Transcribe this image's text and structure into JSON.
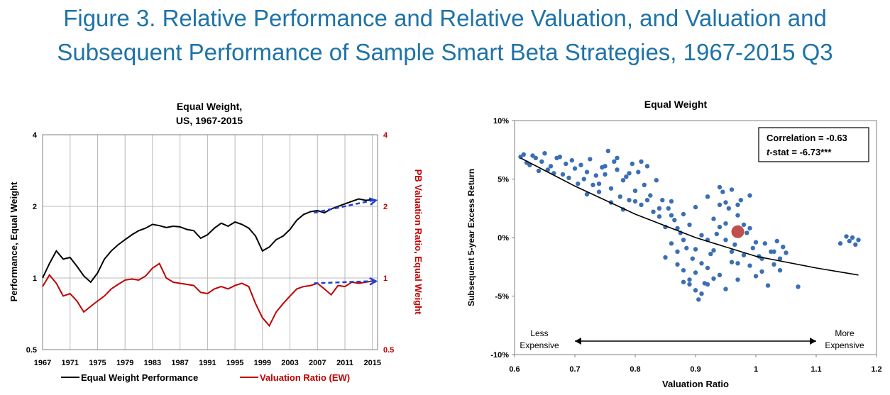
{
  "figure": {
    "title_line1": "Figure 3. Relative Performance and Relative Valuation, and Valuation and",
    "title_line2": "Subsequent Performance of Sample Smart Beta Strategies, 1967-2015 Q3"
  },
  "colors": {
    "title": "#1e73a8",
    "performance": "#000000",
    "valuation": "#c00000",
    "trend": "#1f3fd6",
    "scatter": "#3a6fb4",
    "current": "#c0504d"
  },
  "chart_data": [
    {
      "type": "line",
      "title_line1": "Equal Weight,",
      "title_line2": "US, 1967-2015",
      "ylabel_left": "Performance, Equal Weight",
      "ylabel_right": "PB Valuation Ratio, Equal Weight",
      "yscale": "log",
      "ylim": [
        0.5,
        4
      ],
      "yticks": [
        "0.5",
        "1",
        "2",
        "4"
      ],
      "xlim": [
        1967,
        2015.75
      ],
      "xticks": [
        "1967",
        "1971",
        "1975",
        "1979",
        "1983",
        "1987",
        "1991",
        "1995",
        "1999",
        "2003",
        "2007",
        "2011",
        "2015"
      ],
      "grid": true,
      "legend": [
        "Equal Weight Performance",
        "Valuation Ratio (EW)"
      ],
      "series": [
        {
          "name": "Equal Weight Performance",
          "x": [
            1967,
            1968,
            1969,
            1970,
            1971,
            1972,
            1973,
            1974,
            1975,
            1976,
            1977,
            1978,
            1979,
            1980,
            1981,
            1982,
            1983,
            1984,
            1985,
            1986,
            1987,
            1988,
            1989,
            1990,
            1991,
            1992,
            1993,
            1994,
            1995,
            1996,
            1997,
            1998,
            1999,
            2000,
            2001,
            2002,
            2003,
            2004,
            2005,
            2006,
            2007,
            2008,
            2009,
            2010,
            2011,
            2012,
            2013,
            2014,
            2015,
            2015.5
          ],
          "y": [
            1.0,
            1.15,
            1.3,
            1.2,
            1.22,
            1.12,
            1.02,
            0.96,
            1.05,
            1.2,
            1.3,
            1.38,
            1.45,
            1.52,
            1.58,
            1.62,
            1.68,
            1.66,
            1.63,
            1.65,
            1.64,
            1.6,
            1.58,
            1.47,
            1.52,
            1.62,
            1.7,
            1.65,
            1.72,
            1.68,
            1.62,
            1.5,
            1.3,
            1.35,
            1.45,
            1.5,
            1.6,
            1.75,
            1.85,
            1.9,
            1.92,
            1.88,
            1.95,
            2.0,
            2.05,
            2.1,
            2.15,
            2.12,
            2.13,
            2.12
          ]
        },
        {
          "name": "Valuation Ratio (EW)",
          "x": [
            1967,
            1968,
            1969,
            1970,
            1971,
            1972,
            1973,
            1974,
            1975,
            1976,
            1977,
            1978,
            1979,
            1980,
            1981,
            1982,
            1983,
            1984,
            1985,
            1986,
            1987,
            1988,
            1989,
            1990,
            1991,
            1992,
            1993,
            1994,
            1995,
            1996,
            1997,
            1998,
            1999,
            2000,
            2001,
            2002,
            2003,
            2004,
            2005,
            2006,
            2007,
            2008,
            2009,
            2010,
            2011,
            2012,
            2013,
            2014,
            2015,
            2015.5
          ],
          "y": [
            0.92,
            1.03,
            0.95,
            0.84,
            0.86,
            0.8,
            0.72,
            0.76,
            0.8,
            0.84,
            0.9,
            0.94,
            0.98,
            0.99,
            0.98,
            1.02,
            1.1,
            1.15,
            1.0,
            0.96,
            0.95,
            0.94,
            0.93,
            0.87,
            0.86,
            0.9,
            0.92,
            0.9,
            0.93,
            0.95,
            0.92,
            0.78,
            0.68,
            0.63,
            0.72,
            0.78,
            0.84,
            0.9,
            0.92,
            0.93,
            0.95,
            0.9,
            0.85,
            0.93,
            0.92,
            0.96,
            0.95,
            0.96,
            0.97,
            0.96
          ]
        }
      ],
      "trend_arrows": [
        {
          "x": [
            2006.5,
            2015.5
          ],
          "y": [
            1.88,
            2.12
          ]
        },
        {
          "x": [
            2006.5,
            2015.5
          ],
          "y": [
            0.95,
            0.97
          ]
        }
      ]
    },
    {
      "type": "scatter",
      "title": "Equal Weight",
      "xlabel": "Valuation Ratio",
      "ylabel": "Subsequent 5-year Excess Return",
      "xlim": [
        0.6,
        1.2
      ],
      "ylim": [
        -10,
        10
      ],
      "xticks": [
        "0.6",
        "0.7",
        "0.8",
        "0.9",
        "1",
        "1.1",
        "1.2"
      ],
      "yticks": [
        "-10%",
        "-5%",
        "0%",
        "5%",
        "10%"
      ],
      "stats_line1": "Correlation =  -0.63",
      "stats_line2_italic": "t",
      "stats_line2_rest": "-stat = -6.73***",
      "left_label_line1": "Less",
      "left_label_line2": "Expensive",
      "right_label_line1": "More",
      "right_label_line2": "Expensive",
      "fit_line": {
        "x": [
          0.61,
          0.7,
          0.8,
          0.9,
          1.0,
          1.1,
          1.17
        ],
        "y": [
          6.8,
          4.4,
          2.0,
          0.0,
          -1.6,
          -2.6,
          -3.2
        ]
      },
      "current_point": {
        "x": 0.97,
        "y": 0.5
      },
      "points": [
        [
          0.61,
          6.9
        ],
        [
          0.615,
          7.1
        ],
        [
          0.62,
          6.4
        ],
        [
          0.625,
          6.2
        ],
        [
          0.63,
          7.0
        ],
        [
          0.635,
          6.8
        ],
        [
          0.64,
          5.7
        ],
        [
          0.645,
          6.5
        ],
        [
          0.65,
          7.2
        ],
        [
          0.655,
          5.8
        ],
        [
          0.66,
          6.1
        ],
        [
          0.665,
          5.5
        ],
        [
          0.67,
          6.8
        ],
        [
          0.675,
          6.9
        ],
        [
          0.68,
          5.4
        ],
        [
          0.685,
          6.3
        ],
        [
          0.69,
          5.1
        ],
        [
          0.695,
          6.6
        ],
        [
          0.7,
          5.9
        ],
        [
          0.705,
          4.6
        ],
        [
          0.71,
          6.2
        ],
        [
          0.715,
          5.0
        ],
        [
          0.72,
          5.6
        ],
        [
          0.725,
          6.7
        ],
        [
          0.73,
          4.5
        ],
        [
          0.735,
          5.3
        ],
        [
          0.74,
          3.9
        ],
        [
          0.745,
          6.0
        ],
        [
          0.75,
          5.4
        ],
        [
          0.755,
          7.4
        ],
        [
          0.76,
          4.2
        ],
        [
          0.765,
          6.5
        ],
        [
          0.77,
          5.8
        ],
        [
          0.775,
          3.5
        ],
        [
          0.78,
          4.9
        ],
        [
          0.785,
          5.2
        ],
        [
          0.79,
          3.2
        ],
        [
          0.795,
          6.3
        ],
        [
          0.8,
          4.0
        ],
        [
          0.805,
          5.6
        ],
        [
          0.81,
          2.8
        ],
        [
          0.815,
          4.5
        ],
        [
          0.82,
          6.1
        ],
        [
          0.825,
          3.6
        ],
        [
          0.83,
          2.2
        ],
        [
          0.835,
          4.9
        ],
        [
          0.84,
          1.8
        ],
        [
          0.845,
          3.2
        ],
        [
          0.85,
          0.9
        ],
        [
          0.855,
          2.5
        ],
        [
          0.86,
          -0.5
        ],
        [
          0.865,
          1.5
        ],
        [
          0.87,
          -1.2
        ],
        [
          0.875,
          0.4
        ],
        [
          0.88,
          -2.8
        ],
        [
          0.885,
          -0.9
        ],
        [
          0.89,
          -3.6
        ],
        [
          0.895,
          -1.8
        ],
        [
          0.9,
          -4.5
        ],
        [
          0.905,
          -5.3
        ],
        [
          0.91,
          -2.2
        ],
        [
          0.915,
          -3.9
        ],
        [
          0.92,
          -0.2
        ],
        [
          0.925,
          -1.4
        ],
        [
          0.93,
          1.6
        ],
        [
          0.935,
          0.3
        ],
        [
          0.94,
          2.8
        ],
        [
          0.945,
          3.9
        ],
        [
          0.95,
          1.2
        ],
        [
          0.955,
          2.5
        ],
        [
          0.96,
          4.1
        ],
        [
          0.965,
          -0.6
        ],
        [
          0.97,
          1.9
        ],
        [
          0.975,
          3.2
        ],
        [
          0.98,
          -1.5
        ],
        [
          0.985,
          0.4
        ],
        [
          0.99,
          -2.4
        ],
        [
          0.995,
          -0.9
        ],
        [
          1.0,
          -3.3
        ],
        [
          1.005,
          -1.6
        ],
        [
          1.01,
          -2.9
        ],
        [
          1.015,
          -0.5
        ],
        [
          1.02,
          -4.1
        ],
        [
          1.025,
          -1.2
        ],
        [
          1.03,
          -2.3
        ],
        [
          1.035,
          -0.3
        ],
        [
          1.04,
          -1.8
        ],
        [
          1.045,
          -0.8
        ],
        [
          1.05,
          -1.3
        ],
        [
          1.07,
          -4.2
        ],
        [
          1.14,
          -0.5
        ],
        [
          1.15,
          0.1
        ],
        [
          1.155,
          -0.3
        ],
        [
          1.16,
          0.0
        ],
        [
          1.165,
          -0.6
        ],
        [
          1.17,
          -0.2
        ],
        [
          0.86,
          1.9
        ],
        [
          0.87,
          0.8
        ],
        [
          0.88,
          -0.2
        ],
        [
          0.89,
          1.1
        ],
        [
          0.9,
          -1.0
        ],
        [
          0.91,
          0.2
        ],
        [
          0.92,
          -2.6
        ],
        [
          0.93,
          -1.1
        ],
        [
          0.94,
          0.9
        ],
        [
          0.95,
          -0.2
        ],
        [
          0.96,
          -1.2
        ],
        [
          0.97,
          -2.2
        ],
        [
          0.98,
          1.1
        ],
        [
          0.99,
          0.8
        ],
        [
          1.0,
          -0.4
        ],
        [
          0.88,
          -3.8
        ],
        [
          0.9,
          -3.0
        ],
        [
          0.92,
          -4.0
        ],
        [
          0.94,
          -3.2
        ],
        [
          0.96,
          -2.1
        ],
        [
          0.82,
          3.2
        ],
        [
          0.84,
          2.5
        ],
        [
          0.86,
          3.1
        ],
        [
          0.88,
          2.0
        ],
        [
          0.9,
          2.6
        ],
        [
          0.92,
          3.5
        ],
        [
          0.94,
          4.3
        ],
        [
          0.95,
          3.0
        ],
        [
          0.97,
          2.8
        ],
        [
          0.99,
          3.6
        ],
        [
          0.75,
          6.1
        ],
        [
          0.77,
          6.8
        ],
        [
          0.79,
          5.5
        ],
        [
          0.81,
          6.5
        ],
        [
          0.72,
          3.7
        ],
        [
          0.74,
          4.6
        ],
        [
          0.76,
          3.0
        ],
        [
          0.78,
          2.4
        ],
        [
          0.8,
          3.1
        ],
        [
          0.85,
          -1.7
        ],
        [
          0.87,
          -2.3
        ],
        [
          0.89,
          -4.0
        ],
        [
          0.91,
          -4.8
        ],
        [
          0.93,
          -3.5
        ],
        [
          0.95,
          -4.4
        ],
        [
          0.97,
          -3.6
        ],
        [
          1.01,
          -1.8
        ],
        [
          1.03,
          -1.2
        ],
        [
          1.04,
          -2.8
        ]
      ]
    }
  ]
}
